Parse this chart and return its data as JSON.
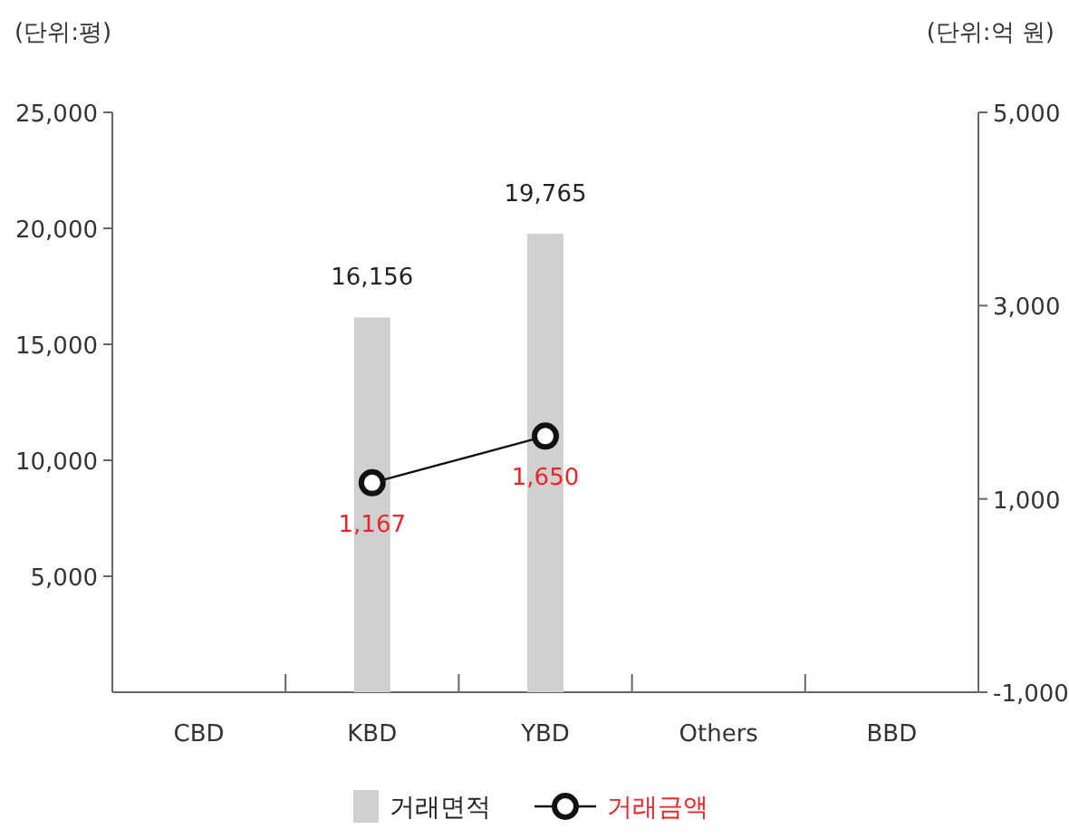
{
  "chart_data": {
    "type": "bar",
    "ylabel": "(단위:평)",
    "y2label": "(단위:억 원)",
    "categories": [
      "CBD",
      "KBD",
      "YBD",
      "Others",
      "BBD"
    ],
    "series": [
      {
        "name": "거래면적",
        "color": "#d0d0d0",
        "values": [
          null,
          16156,
          19765,
          null,
          null
        ],
        "value_labels": [
          null,
          "16,156",
          "19,765",
          null,
          null
        ]
      },
      {
        "name": "거래금액",
        "type": "line",
        "axis": "y2",
        "color": "#111111",
        "marker": "circle",
        "values": [
          null,
          1167,
          1650,
          null,
          null
        ],
        "value_labels": [
          null,
          "1,167",
          "1,650",
          null,
          null
        ]
      }
    ],
    "ylim": [
      0,
      25000
    ],
    "yticks": [
      {
        "value": 5000,
        "label": "5,000"
      },
      {
        "value": 10000,
        "label": "10,000"
      },
      {
        "value": 15000,
        "label": "15,000"
      },
      {
        "value": 20000,
        "label": "20,000"
      },
      {
        "value": 25000,
        "label": "25,000"
      }
    ],
    "y2lim": [
      -1000,
      5000
    ],
    "y2ticks": [
      {
        "value": -1000,
        "label": "-1,000"
      },
      {
        "value": 1000,
        "label": "1,000"
      },
      {
        "value": 3000,
        "label": "3,000"
      },
      {
        "value": 5000,
        "label": "5,000"
      }
    ],
    "legend": "bottom",
    "grid": false
  }
}
